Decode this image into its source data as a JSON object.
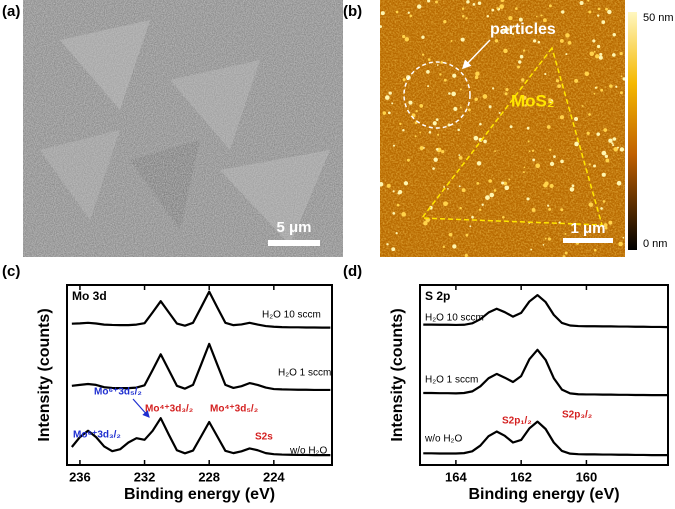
{
  "panel_labels": [
    "(a)",
    "(b)",
    "(c)",
    "(d)"
  ],
  "sem_image": {
    "scale_bar": "5 μm"
  },
  "afm_image": {
    "label_particles": "particles",
    "label_flake": "MoS₂",
    "scale_bar": "1 μm",
    "colorbar_max": "50 nm",
    "colorbar_min": "0 nm"
  },
  "chart_data": [
    {
      "type": "line",
      "title": "Mo 3d",
      "x_label": "Binding energy (eV)",
      "y_label": "Intensity (counts)",
      "xlim": [
        236.8,
        220.4
      ],
      "xticks": [
        236,
        232,
        228,
        224
      ],
      "ylim": [
        0,
        10
      ],
      "x": [
        236.5,
        236,
        235.5,
        235,
        234.5,
        234,
        233.5,
        233,
        232.5,
        232,
        231.5,
        231,
        230.5,
        230,
        229.5,
        229,
        228.5,
        228,
        227.5,
        227,
        226.5,
        226,
        225.5,
        225,
        224.5,
        224,
        223.5,
        223,
        222.5,
        222,
        221.5,
        221,
        220.5
      ],
      "series": [
        {
          "name": "H₂O 10 sccm",
          "color": "#000000",
          "values": [
            7.85,
            7.87,
            7.9,
            7.86,
            7.8,
            7.78,
            7.77,
            7.77,
            7.8,
            7.88,
            8.48,
            9.1,
            8.48,
            7.86,
            7.74,
            7.9,
            8.76,
            9.63,
            8.76,
            7.9,
            7.77,
            7.81,
            7.9,
            7.8,
            7.72,
            7.68,
            7.66,
            7.65,
            7.65,
            7.64,
            7.64,
            7.63,
            7.63
          ]
        },
        {
          "name": "H₂O 1 sccm",
          "color": "#000000",
          "values": [
            4.4,
            4.45,
            4.5,
            4.45,
            4.32,
            4.28,
            4.27,
            4.27,
            4.3,
            4.43,
            5.28,
            6.15,
            5.28,
            4.4,
            4.24,
            4.45,
            5.58,
            6.73,
            5.58,
            4.45,
            4.28,
            4.38,
            4.55,
            4.45,
            4.3,
            4.22,
            4.2,
            4.19,
            4.18,
            4.18,
            4.17,
            4.17,
            4.17
          ]
        },
        {
          "name": "w/o H₂O",
          "color": "#000000",
          "values": [
            1.0,
            1.55,
            1.9,
            1.55,
            1.03,
            0.77,
            0.88,
            1.25,
            1.49,
            1.4,
            1.9,
            2.6,
            1.69,
            0.82,
            0.65,
            0.8,
            1.59,
            2.39,
            1.59,
            0.79,
            0.66,
            0.76,
            0.92,
            0.82,
            0.66,
            0.6,
            0.58,
            0.57,
            0.56,
            0.56,
            0.55,
            0.55,
            0.55
          ]
        }
      ],
      "annotations": [
        {
          "text": "Mo⁶⁺3d₅/₂",
          "color": "#1f2fd0"
        },
        {
          "text": "Mo⁶⁺3d₃/₂",
          "color": "#1f2fd0"
        },
        {
          "text": "Mo⁴⁺3d₃/₂",
          "color": "#d42020"
        },
        {
          "text": "Mo⁴⁺3d₅/₂",
          "color": "#d42020"
        },
        {
          "text": "S2s",
          "color": "#d42020"
        }
      ]
    },
    {
      "type": "line",
      "title": "S 2p",
      "x_label": "Binding energy (eV)",
      "y_label": "Intensity (counts)",
      "xlim": [
        165.1,
        157.5
      ],
      "xticks": [
        164,
        162,
        160
      ],
      "ylim": [
        0,
        10
      ],
      "x": [
        165,
        164.75,
        164.5,
        164.25,
        164,
        163.75,
        163.5,
        163.25,
        163,
        162.75,
        162.5,
        162.25,
        162,
        161.75,
        161.5,
        161.25,
        161,
        160.75,
        160.5,
        160.25,
        160,
        159.75,
        159.5,
        159.25,
        159,
        158.75,
        158.5,
        158.25,
        158,
        157.75,
        157.5
      ],
      "series": [
        {
          "name": "H₂O 10 sccm",
          "color": "#000000",
          "values": [
            7.8,
            7.8,
            7.79,
            7.79,
            7.78,
            7.79,
            7.87,
            8.1,
            8.47,
            8.68,
            8.49,
            8.24,
            8.45,
            9.08,
            9.44,
            9.05,
            8.34,
            7.89,
            7.75,
            7.72,
            7.71,
            7.71,
            7.7,
            7.7,
            7.69,
            7.69,
            7.68,
            7.68,
            7.67,
            7.67,
            7.66
          ]
        },
        {
          "name": "H₂O 1 sccm",
          "color": "#000000",
          "values": [
            4.0,
            4.0,
            3.99,
            3.99,
            3.98,
            4.0,
            4.09,
            4.37,
            4.82,
            5.06,
            4.85,
            4.61,
            4.94,
            5.87,
            6.4,
            5.84,
            4.82,
            4.19,
            3.98,
            3.93,
            3.92,
            3.92,
            3.91,
            3.91,
            3.9,
            3.9,
            3.89,
            3.89,
            3.88,
            3.88,
            3.88
          ]
        },
        {
          "name": "w/o H₂O",
          "color": "#000000",
          "values": [
            0.65,
            0.65,
            0.64,
            0.64,
            0.64,
            0.66,
            0.76,
            1.08,
            1.6,
            1.86,
            1.62,
            1.25,
            1.39,
            2.03,
            2.41,
            2.0,
            1.25,
            0.78,
            0.63,
            0.6,
            0.59,
            0.59,
            0.58,
            0.58,
            0.57,
            0.57,
            0.56,
            0.56,
            0.55,
            0.55,
            0.55
          ]
        }
      ],
      "annotations": [
        {
          "text": "S2p₁/₂",
          "color": "#d42020"
        },
        {
          "text": "S2p₃/₂",
          "color": "#d42020"
        }
      ]
    }
  ]
}
